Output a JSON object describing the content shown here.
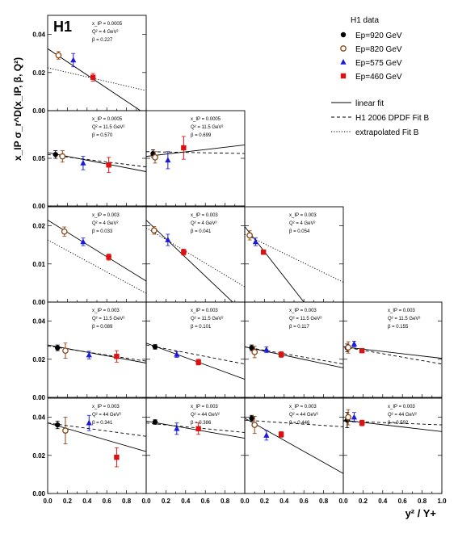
{
  "chart_data": {
    "type": "scatter",
    "logo": "H1",
    "ylabel": "x_IP σ_r^D(x_IP, β, Q²)",
    "xlabel": "y² / Y+",
    "x_tick_labels": [
      "0.0",
      "0.2",
      "0.4",
      "0.6",
      "0.8",
      "1.0"
    ],
    "legend": {
      "title": "H1 data",
      "series": [
        {
          "key": "920",
          "label": "Ep=920 GeV",
          "color": "#000000",
          "marker": "circle-filled"
        },
        {
          "key": "820",
          "label": "Ep=820 GeV",
          "color": "#8B4513",
          "marker": "circle-open"
        },
        {
          "key": "575",
          "label": "Ep=575 GeV",
          "color": "#1a1adb",
          "marker": "triangle"
        },
        {
          "key": "460",
          "label": "Ep=460 GeV",
          "color": "#dd1111",
          "marker": "square"
        }
      ],
      "lines": [
        {
          "key": "linear",
          "label": "linear fit",
          "dash": "solid"
        },
        {
          "key": "dpdf",
          "label": "H1 2006 DPDF Fit B",
          "dash": "dashed"
        },
        {
          "key": "extrap",
          "label": "extrapolated Fit B",
          "dash": "dotted"
        }
      ]
    },
    "rows": [
      {
        "y_ticks": [
          "0.00",
          "0.02",
          "0.04"
        ],
        "ylim": [
          0,
          0.05
        ]
      },
      {
        "y_ticks": [
          "0.00",
          "0.05"
        ],
        "ylim": [
          0,
          0.1
        ]
      },
      {
        "y_ticks": [
          "0.00",
          "0.01",
          "0.02"
        ],
        "ylim": [
          0,
          0.025
        ]
      },
      {
        "y_ticks": [
          "0.00",
          "0.02",
          "0.04"
        ],
        "ylim": [
          0,
          0.05
        ]
      },
      {
        "y_ticks": [
          "0.00",
          "0.02",
          "0.04"
        ],
        "ylim": [
          0,
          0.05
        ]
      }
    ],
    "xlim": [
      0,
      1
    ],
    "panels": [
      {
        "row": 0,
        "col": 0,
        "xip": "x_IP = 0.0005",
        "q2": "Q² = 4 GeV²",
        "beta": "β = 0.227",
        "points": [
          {
            "s": "820",
            "x": 0.11,
            "y": 0.029,
            "e": 0.002
          },
          {
            "s": "575",
            "x": 0.26,
            "y": 0.0265,
            "e": 0.0035
          },
          {
            "s": "460",
            "x": 0.46,
            "y": 0.0175,
            "e": 0.002
          }
        ],
        "linear": [
          0.0,
          0.0325,
          1.0,
          -0.002
        ],
        "extrap": [
          0.0,
          0.0225,
          1.0,
          0.0105
        ]
      },
      {
        "row": 1,
        "col": 0,
        "xip": "x_IP = 0.0005",
        "q2": "Q² = 11.5 GeV²",
        "beta": "β = 0.570",
        "points": [
          {
            "s": "920",
            "x": 0.08,
            "y": 0.054,
            "e": 0.004
          },
          {
            "s": "820",
            "x": 0.15,
            "y": 0.052,
            "e": 0.006
          },
          {
            "s": "575",
            "x": 0.36,
            "y": 0.045,
            "e": 0.007
          },
          {
            "s": "460",
            "x": 0.62,
            "y": 0.043,
            "e": 0.008
          }
        ],
        "linear": [
          0.0,
          0.056,
          1.0,
          0.036
        ],
        "dpdf": [
          0.0,
          0.054,
          1.0,
          0.041
        ]
      },
      {
        "row": 1,
        "col": 1,
        "xip": "x_IP = 0.0005",
        "q2": "Q² = 11.5 GeV²",
        "beta": "β = 0.699",
        "points": [
          {
            "s": "920",
            "x": 0.07,
            "y": 0.055,
            "e": 0.004
          },
          {
            "s": "820",
            "x": 0.09,
            "y": 0.051,
            "e": 0.006
          },
          {
            "s": "575",
            "x": 0.22,
            "y": 0.048,
            "e": 0.009
          },
          {
            "s": "460",
            "x": 0.38,
            "y": 0.061,
            "e": 0.012
          }
        ],
        "linear": [
          0.0,
          0.052,
          1.0,
          0.064
        ],
        "dpdf": [
          0.0,
          0.057,
          1.0,
          0.055
        ]
      },
      {
        "row": 2,
        "col": 0,
        "xip": "x_IP = 0.003",
        "q2": "Q² = 4 GeV²",
        "beta": "β = 0.033",
        "points": [
          {
            "s": "820",
            "x": 0.17,
            "y": 0.0185,
            "e": 0.0012
          },
          {
            "s": "575",
            "x": 0.36,
            "y": 0.0158,
            "e": 0.001
          },
          {
            "s": "460",
            "x": 0.62,
            "y": 0.0118,
            "e": 0.0008
          }
        ],
        "linear": [
          0.0,
          0.0215,
          1.0,
          0.0055
        ],
        "extrap": [
          0.0,
          0.0163,
          1.0,
          0.0023
        ]
      },
      {
        "row": 2,
        "col": 1,
        "xip": "x_IP = 0.003",
        "q2": "Q² = 4 GeV²",
        "beta": "β = 0.041",
        "points": [
          {
            "s": "820",
            "x": 0.08,
            "y": 0.0188,
            "e": 0.001
          },
          {
            "s": "575",
            "x": 0.22,
            "y": 0.0163,
            "e": 0.0015
          },
          {
            "s": "460",
            "x": 0.38,
            "y": 0.0131,
            "e": 0.0008
          }
        ],
        "linear": [
          0.0,
          0.0215,
          1.0,
          -0.003
        ],
        "extrap": [
          0.0,
          0.0195,
          1.0,
          0.004
        ]
      },
      {
        "row": 2,
        "col": 2,
        "xip": "x_IP = 0.003",
        "q2": "Q² = 4 GeV²",
        "beta": "β = 0.054",
        "points": [
          {
            "s": "820",
            "x": 0.05,
            "y": 0.0175,
            "e": 0.0012
          },
          {
            "s": "575",
            "x": 0.11,
            "y": 0.0158,
            "e": 0.001
          },
          {
            "s": "460",
            "x": 0.19,
            "y": 0.0131,
            "e": 0.0006
          }
        ],
        "linear": [
          0.0,
          0.0198,
          0.6,
          0.0
        ],
        "extrap": [
          0.0,
          0.0178,
          1.0,
          0.0052
        ]
      },
      {
        "row": 3,
        "col": 0,
        "xip": "x_IP = 0.003",
        "q2": "Q² = 11.5 GeV²",
        "beta": "β = 0.089",
        "points": [
          {
            "s": "920",
            "x": 0.1,
            "y": 0.026,
            "e": 0.0015
          },
          {
            "s": "820",
            "x": 0.18,
            "y": 0.0245,
            "e": 0.004
          },
          {
            "s": "575",
            "x": 0.42,
            "y": 0.0222,
            "e": 0.002
          },
          {
            "s": "460",
            "x": 0.7,
            "y": 0.0215,
            "e": 0.003
          }
        ],
        "linear": [
          0.0,
          0.0275,
          1.0,
          0.018
        ],
        "dpdf": [
          0.0,
          0.027,
          1.0,
          0.019
        ]
      },
      {
        "row": 3,
        "col": 1,
        "xip": "x_IP = 0.003",
        "q2": "Q² = 11.5 GeV²",
        "beta": "β = 0.101",
        "points": [
          {
            "s": "920",
            "x": 0.09,
            "y": 0.0265,
            "e": 0.0012
          },
          {
            "s": "575",
            "x": 0.31,
            "y": 0.0225,
            "e": 0.0015
          },
          {
            "s": "460",
            "x": 0.53,
            "y": 0.0185,
            "e": 0.0015
          }
        ],
        "linear": [
          0.0,
          0.0285,
          1.0,
          0.0095
        ],
        "dpdf": [
          0.0,
          0.0275,
          1.0,
          0.0175
        ]
      },
      {
        "row": 3,
        "col": 2,
        "xip": "x_IP = 0.003",
        "q2": "Q² = 11.5 GeV²",
        "beta": "β = 0.117",
        "points": [
          {
            "s": "920",
            "x": 0.07,
            "y": 0.026,
            "e": 0.0015
          },
          {
            "s": "820",
            "x": 0.1,
            "y": 0.0238,
            "e": 0.003
          },
          {
            "s": "575",
            "x": 0.22,
            "y": 0.025,
            "e": 0.0015
          },
          {
            "s": "460",
            "x": 0.37,
            "y": 0.0225,
            "e": 0.0015
          }
        ],
        "linear": [
          0.0,
          0.0265,
          1.0,
          0.0155
        ],
        "dpdf": [
          0.0,
          0.0265,
          1.0,
          0.0175
        ]
      },
      {
        "row": 3,
        "col": 3,
        "xip": "x_IP = 0.003",
        "q2": "Q² = 11.5 GeV²",
        "beta": "β = 0.155",
        "points": [
          {
            "s": "920",
            "x": 0.04,
            "y": 0.026,
            "e": 0.002
          },
          {
            "s": "820",
            "x": 0.05,
            "y": 0.0262,
            "e": 0.003
          },
          {
            "s": "575",
            "x": 0.11,
            "y": 0.028,
            "e": 0.0015
          },
          {
            "s": "460",
            "x": 0.19,
            "y": 0.0245,
            "e": 0.001
          }
        ],
        "linear": [
          0.0,
          0.0265,
          1.0,
          0.0205
        ],
        "dpdf": [
          0.0,
          0.0265,
          1.0,
          0.0175
        ]
      },
      {
        "row": 4,
        "col": 0,
        "xip": "x_IP = 0.003",
        "q2": "Q² = 44 GeV²",
        "beta": "β = 0.341",
        "points": [
          {
            "s": "920",
            "x": 0.1,
            "y": 0.036,
            "e": 0.002
          },
          {
            "s": "820",
            "x": 0.18,
            "y": 0.033,
            "e": 0.007
          },
          {
            "s": "575",
            "x": 0.42,
            "y": 0.037,
            "e": 0.004
          },
          {
            "s": "460",
            "x": 0.7,
            "y": 0.019,
            "e": 0.005
          }
        ],
        "linear": [
          0.0,
          0.037,
          1.0,
          0.022
        ],
        "dpdf": [
          0.0,
          0.037,
          1.0,
          0.03
        ]
      },
      {
        "row": 4,
        "col": 1,
        "xip": "x_IP = 0.003",
        "q2": "Q² = 44 GeV²",
        "beta": "β = 0.386",
        "points": [
          {
            "s": "920",
            "x": 0.09,
            "y": 0.0375,
            "e": 0.0012
          },
          {
            "s": "575",
            "x": 0.31,
            "y": 0.034,
            "e": 0.003
          },
          {
            "s": "460",
            "x": 0.53,
            "y": 0.034,
            "e": 0.003
          }
        ],
        "linear": [
          0.0,
          0.038,
          1.0,
          0.029
        ],
        "dpdf": [
          0.0,
          0.037,
          1.0,
          0.032
        ]
      },
      {
        "row": 4,
        "col": 2,
        "xip": "x_IP = 0.003",
        "q2": "Q² = 44 GeV²",
        "beta": "β = 0.446",
        "points": [
          {
            "s": "920",
            "x": 0.07,
            "y": 0.0395,
            "e": 0.0015
          },
          {
            "s": "820",
            "x": 0.1,
            "y": 0.036,
            "e": 0.0045
          },
          {
            "s": "575",
            "x": 0.22,
            "y": 0.0305,
            "e": 0.0025
          },
          {
            "s": "460",
            "x": 0.37,
            "y": 0.031,
            "e": 0.0015
          }
        ],
        "linear": [
          0.0,
          0.0395,
          1.0,
          0.0105
        ],
        "dpdf": [
          0.0,
          0.0385,
          1.0,
          0.035
        ]
      },
      {
        "row": 4,
        "col": 3,
        "xip": "x_IP = 0.003",
        "q2": "Q² = 44 GeV²",
        "beta": "β = 0.592",
        "points": [
          {
            "s": "920",
            "x": 0.04,
            "y": 0.0385,
            "e": 0.004
          },
          {
            "s": "820",
            "x": 0.05,
            "y": 0.04,
            "e": 0.004
          },
          {
            "s": "575",
            "x": 0.11,
            "y": 0.04,
            "e": 0.0025
          },
          {
            "s": "460",
            "x": 0.19,
            "y": 0.037,
            "e": 0.0015
          }
        ],
        "linear": [
          0.0,
          0.0385,
          1.0,
          0.0325
        ],
        "dpdf": [
          0.0,
          0.038,
          1.0,
          0.036
        ]
      }
    ]
  }
}
